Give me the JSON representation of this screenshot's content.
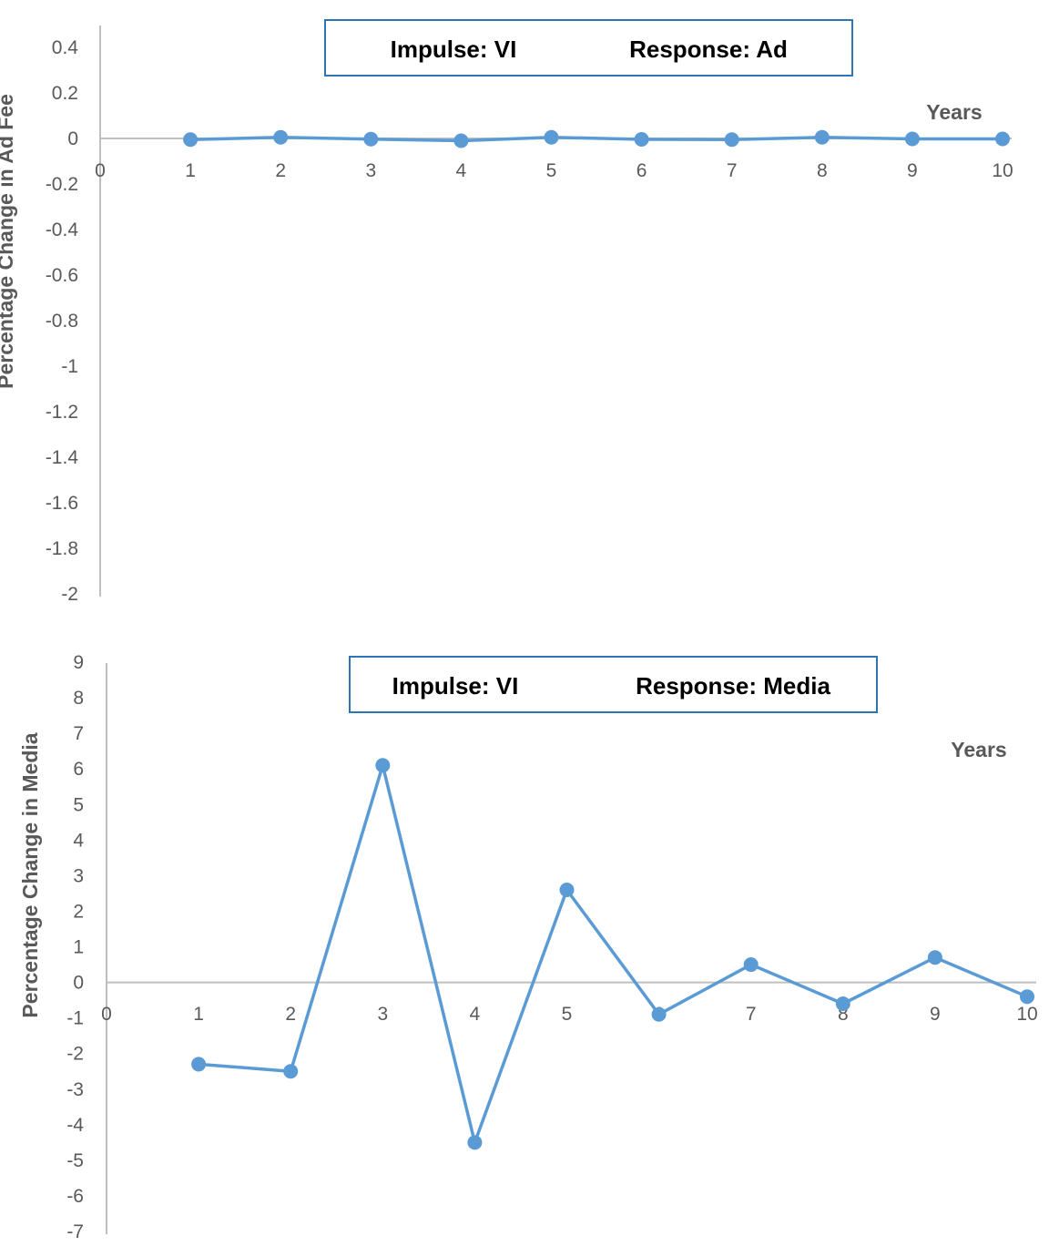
{
  "colors": {
    "series": "#5b9bd5",
    "axis": "#bfbfbf",
    "text": "#595959",
    "box_border": "#2e75b6"
  },
  "chart_data": [
    {
      "type": "line",
      "title": "",
      "annotation": {
        "impulse": "Impulse: VI",
        "response": "Response: Ad"
      },
      "xlabel": "Years",
      "ylabel": "Percentage Change in Ad Fee",
      "x": [
        1,
        2,
        3,
        4,
        5,
        6,
        7,
        8,
        9,
        10
      ],
      "x_ticks": [
        "0",
        "1",
        "2",
        "3",
        "4",
        "5",
        "6",
        "7",
        "8",
        "9",
        "10"
      ],
      "y_ticks": [
        "0.4",
        "0.2",
        "0",
        "-0.2",
        "-0.4",
        "-0.6",
        "-0.8",
        "-1",
        "-1.2",
        "-1.4",
        "-1.6",
        "-1.8",
        "-2"
      ],
      "ylim": [
        -2,
        0.4
      ],
      "xlim": [
        0,
        10
      ],
      "series": [
        {
          "values": [
            -0.005,
            0.005,
            -0.003,
            -0.01,
            0.005,
            -0.004,
            -0.005,
            0.005,
            -0.002,
            -0.002
          ]
        }
      ],
      "grid": false
    },
    {
      "type": "line",
      "title": "",
      "annotation": {
        "impulse": "Impulse: VI",
        "response": "Response: Media"
      },
      "xlabel": "Years",
      "ylabel": "Percentage Change in Media",
      "x": [
        1,
        2,
        3,
        4,
        5,
        6,
        7,
        8,
        9,
        10
      ],
      "x_ticks": [
        "0",
        "1",
        "2",
        "3",
        "4",
        "5",
        "6",
        "7",
        "8",
        "9",
        "10"
      ],
      "y_ticks": [
        "9",
        "8",
        "7",
        "6",
        "5",
        "4",
        "3",
        "2",
        "1",
        "0",
        "-1",
        "-2",
        "-3",
        "-4",
        "-5",
        "-6",
        "-7"
      ],
      "ylim": [
        -7,
        9
      ],
      "xlim": [
        0,
        10
      ],
      "series": [
        {
          "values": [
            -2.3,
            -2.5,
            6.1,
            -4.5,
            2.6,
            -0.9,
            0.5,
            -0.6,
            0.7,
            -0.4
          ]
        }
      ],
      "grid": false
    }
  ]
}
